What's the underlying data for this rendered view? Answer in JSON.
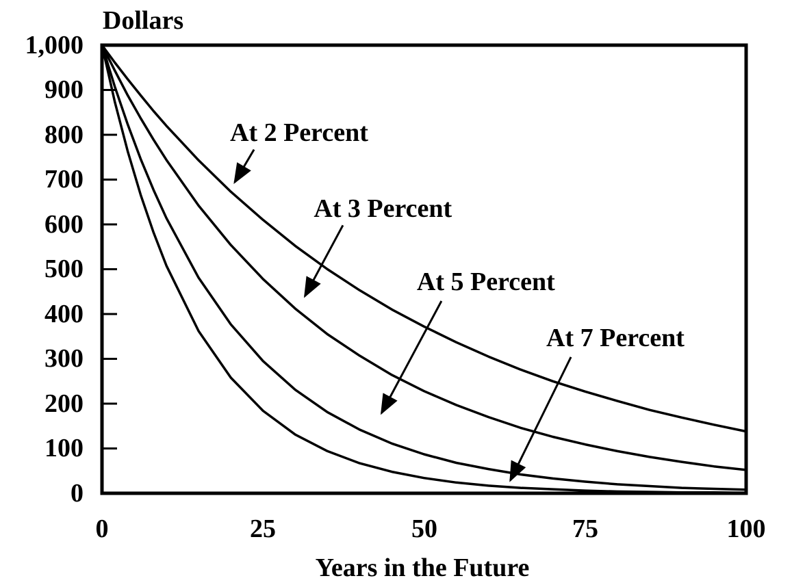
{
  "page": {
    "background": "#ffffff",
    "text_color": "#000000"
  },
  "chart_data": {
    "type": "line",
    "y_axis_title": "Dollars",
    "x_axis_title": "Years in the Future",
    "xlim": [
      0,
      100
    ],
    "ylim": [
      0,
      1000
    ],
    "grid": false,
    "legend_position": "none",
    "line_color": "#000000",
    "x_ticks": [
      {
        "value": 0,
        "label": "0"
      },
      {
        "value": 25,
        "label": "25"
      },
      {
        "value": 50,
        "label": "50"
      },
      {
        "value": 75,
        "label": "75"
      },
      {
        "value": 100,
        "label": "100"
      }
    ],
    "y_ticks": [
      {
        "value": 1000,
        "label": "1,000"
      },
      {
        "value": 900,
        "label": "900"
      },
      {
        "value": 800,
        "label": "800"
      },
      {
        "value": 700,
        "label": "700"
      },
      {
        "value": 600,
        "label": "600"
      },
      {
        "value": 500,
        "label": "500"
      },
      {
        "value": 400,
        "label": "400"
      },
      {
        "value": 300,
        "label": "300"
      },
      {
        "value": 200,
        "label": "200"
      },
      {
        "value": 100,
        "label": "100"
      },
      {
        "value": 0,
        "label": "0"
      }
    ],
    "x": [
      0,
      2,
      4,
      6,
      8,
      10,
      15,
      20,
      25,
      30,
      35,
      40,
      45,
      50,
      55,
      60,
      65,
      70,
      75,
      80,
      85,
      90,
      95,
      100
    ],
    "series": [
      {
        "name": "At 2 Percent",
        "discount_rate_percent": 2,
        "values": [
          1000,
          961,
          924,
          888,
          853,
          820,
          743,
          673,
          610,
          552,
          500,
          453,
          410,
          372,
          337,
          305,
          276,
          250,
          227,
          206,
          186,
          169,
          153,
          138
        ]
      },
      {
        "name": "At 3 Percent",
        "discount_rate_percent": 3,
        "values": [
          1000,
          943,
          888,
          837,
          789,
          744,
          642,
          554,
          478,
          412,
          355,
          307,
          264,
          228,
          197,
          170,
          146,
          126,
          109,
          94,
          81,
          70,
          60,
          52
        ]
      },
      {
        "name": "At 5 Percent",
        "discount_rate_percent": 5,
        "values": [
          1000,
          907,
          823,
          746,
          677,
          614,
          481,
          377,
          295,
          231,
          181,
          142,
          111,
          87,
          68,
          54,
          42,
          33,
          26,
          20,
          16,
          12,
          10,
          8
        ]
      },
      {
        "name": "At 7 Percent",
        "discount_rate_percent": 7,
        "values": [
          1000,
          873,
          763,
          666,
          582,
          508,
          362,
          258,
          184,
          131,
          94,
          67,
          48,
          34,
          24,
          17,
          12,
          9,
          6,
          4,
          3,
          2,
          2,
          1
        ]
      }
    ],
    "annotations": [
      {
        "label": "At 2 Percent",
        "label_at": {
          "x": 30.6,
          "y": 805
        },
        "arrow": {
          "from": {
            "x": 23.6,
            "y": 767
          },
          "to": {
            "x": 20.6,
            "y": 694
          }
        }
      },
      {
        "label": "At 3 Percent",
        "label_at": {
          "x": 43.6,
          "y": 635
        },
        "arrow": {
          "from": {
            "x": 37.4,
            "y": 598
          },
          "to": {
            "x": 31.5,
            "y": 440
          }
        }
      },
      {
        "label": "At 5 Percent",
        "label_at": {
          "x": 59.6,
          "y": 472
        },
        "arrow": {
          "from": {
            "x": 52.7,
            "y": 429
          },
          "to": {
            "x": 43.4,
            "y": 179
          }
        }
      },
      {
        "label": "At 7 Percent",
        "label_at": {
          "x": 79.7,
          "y": 347
        },
        "arrow": {
          "from": {
            "x": 72.8,
            "y": 304
          },
          "to": {
            "x": 63.4,
            "y": 29
          }
        }
      }
    ]
  }
}
